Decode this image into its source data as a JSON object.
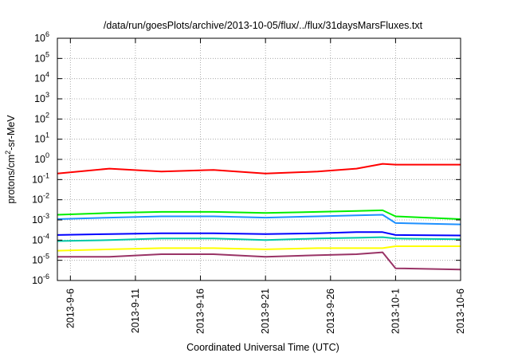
{
  "chart_data": {
    "type": "line",
    "title": "/data/run/goesPlots/archive/2013-10-05/flux/../flux/31daysMarsFluxes.txt",
    "xlabel": "Coordinated Universal Time (UTC)",
    "ylabel": "protons/cm2-sr-MeV",
    "ylabel_parts": {
      "base": "protons/cm",
      "sup": "2",
      "rest": "-sr-MeV"
    },
    "yscale": "log",
    "ylim": [
      1e-06,
      1000000.0
    ],
    "xlim": [
      "2013-09-05",
      "2013-10-06"
    ],
    "grid": true,
    "x_ticks": [
      "2013-9-6",
      "2013-9-11",
      "2013-9-16",
      "2013-9-21",
      "2013-9-26",
      "2013-10-1",
      "2013-10-6"
    ],
    "y_ticks": [
      {
        "base": "10",
        "exp": "-6"
      },
      {
        "base": "10",
        "exp": "-5"
      },
      {
        "base": "10",
        "exp": "-4"
      },
      {
        "base": "10",
        "exp": "-3"
      },
      {
        "base": "10",
        "exp": "-2"
      },
      {
        "base": "10",
        "exp": "-1"
      },
      {
        "base": "10",
        "exp": "0"
      },
      {
        "base": "10",
        "exp": "1"
      },
      {
        "base": "10",
        "exp": "2"
      },
      {
        "base": "10",
        "exp": "3"
      },
      {
        "base": "10",
        "exp": "4"
      },
      {
        "base": "10",
        "exp": "5"
      },
      {
        "base": "10",
        "exp": "6"
      }
    ],
    "series": [
      {
        "color": "#ff0000",
        "x": [
          "2013-09-05",
          "2013-09-09",
          "2013-09-13",
          "2013-09-17",
          "2013-09-21",
          "2013-09-25",
          "2013-09-28",
          "2013-09-30",
          "2013-10-01",
          "2013-10-06"
        ],
        "values": [
          0.2,
          0.35,
          0.25,
          0.3,
          0.2,
          0.25,
          0.35,
          0.6,
          0.55,
          0.55
        ]
      },
      {
        "color": "#00ee00",
        "x": [
          "2013-09-05",
          "2013-09-09",
          "2013-09-13",
          "2013-09-17",
          "2013-09-21",
          "2013-09-25",
          "2013-09-28",
          "2013-09-30",
          "2013-10-01",
          "2013-10-06"
        ],
        "values": [
          0.0018,
          0.0022,
          0.0025,
          0.0025,
          0.0022,
          0.0025,
          0.0028,
          0.003,
          0.0015,
          0.0011
        ]
      },
      {
        "color": "#1e90ff",
        "x": [
          "2013-09-05",
          "2013-09-09",
          "2013-09-13",
          "2013-09-17",
          "2013-09-21",
          "2013-09-25",
          "2013-09-28",
          "2013-09-30",
          "2013-10-01",
          "2013-10-06"
        ],
        "values": [
          0.0011,
          0.0013,
          0.0015,
          0.0015,
          0.0013,
          0.0015,
          0.0017,
          0.0018,
          0.0007,
          0.0006
        ]
      },
      {
        "color": "#0000ff",
        "x": [
          "2013-09-05",
          "2013-09-09",
          "2013-09-13",
          "2013-09-17",
          "2013-09-21",
          "2013-09-25",
          "2013-09-28",
          "2013-09-30",
          "2013-10-01",
          "2013-10-06"
        ],
        "values": [
          0.00018,
          0.0002,
          0.00022,
          0.00022,
          0.0002,
          0.00022,
          0.00025,
          0.00025,
          0.00018,
          0.00017
        ]
      },
      {
        "color": "#00c8a8",
        "x": [
          "2013-09-05",
          "2013-09-09",
          "2013-09-13",
          "2013-09-17",
          "2013-09-21",
          "2013-09-25",
          "2013-09-28",
          "2013-09-30",
          "2013-10-01",
          "2013-10-06"
        ],
        "values": [
          9e-05,
          0.0001,
          0.00012,
          0.00012,
          0.0001,
          0.00012,
          0.00013,
          0.00014,
          0.00012,
          0.00011
        ]
      },
      {
        "color": "#ffff00",
        "x": [
          "2013-09-05",
          "2013-09-09",
          "2013-09-13",
          "2013-09-17",
          "2013-09-21",
          "2013-09-25",
          "2013-09-28",
          "2013-09-30",
          "2013-10-01",
          "2013-10-06"
        ],
        "values": [
          3e-05,
          3.5e-05,
          4e-05,
          4e-05,
          3.5e-05,
          4e-05,
          4e-05,
          4e-05,
          5e-05,
          5e-05
        ]
      },
      {
        "color": "#993366",
        "x": [
          "2013-09-05",
          "2013-09-09",
          "2013-09-13",
          "2013-09-17",
          "2013-09-21",
          "2013-09-25",
          "2013-09-28",
          "2013-09-30",
          "2013-10-01",
          "2013-10-06"
        ],
        "values": [
          1.5e-05,
          1.5e-05,
          2e-05,
          2e-05,
          1.5e-05,
          1.8e-05,
          2e-05,
          2.5e-05,
          4e-06,
          3.5e-06
        ]
      }
    ]
  }
}
